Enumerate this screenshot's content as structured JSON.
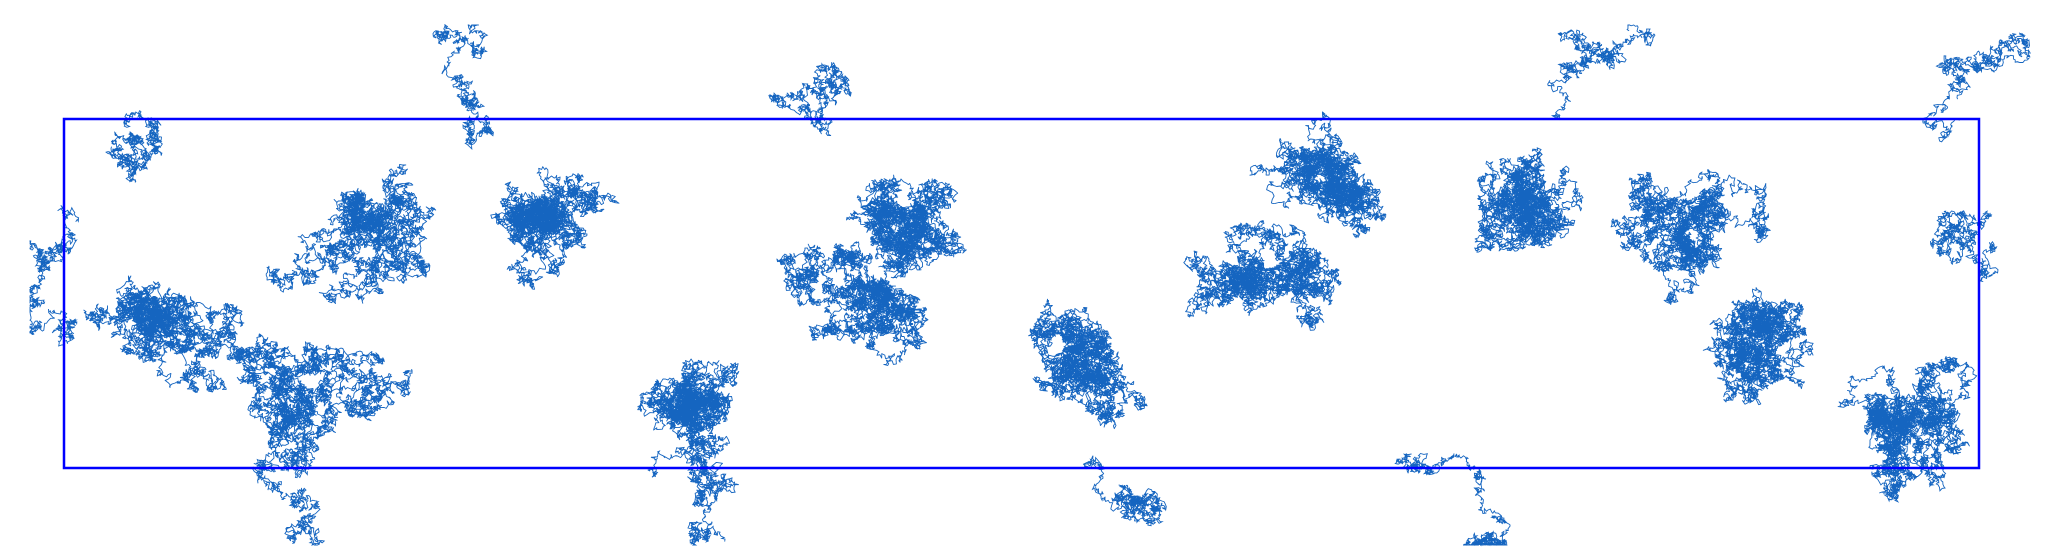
{
  "figure": {
    "type": "random-walk-trace",
    "description_visible_text": "",
    "colors": {
      "background": "#ffffff",
      "walk_line": "#1565c0",
      "bounding_box": "#0000ff"
    }
  }
}
